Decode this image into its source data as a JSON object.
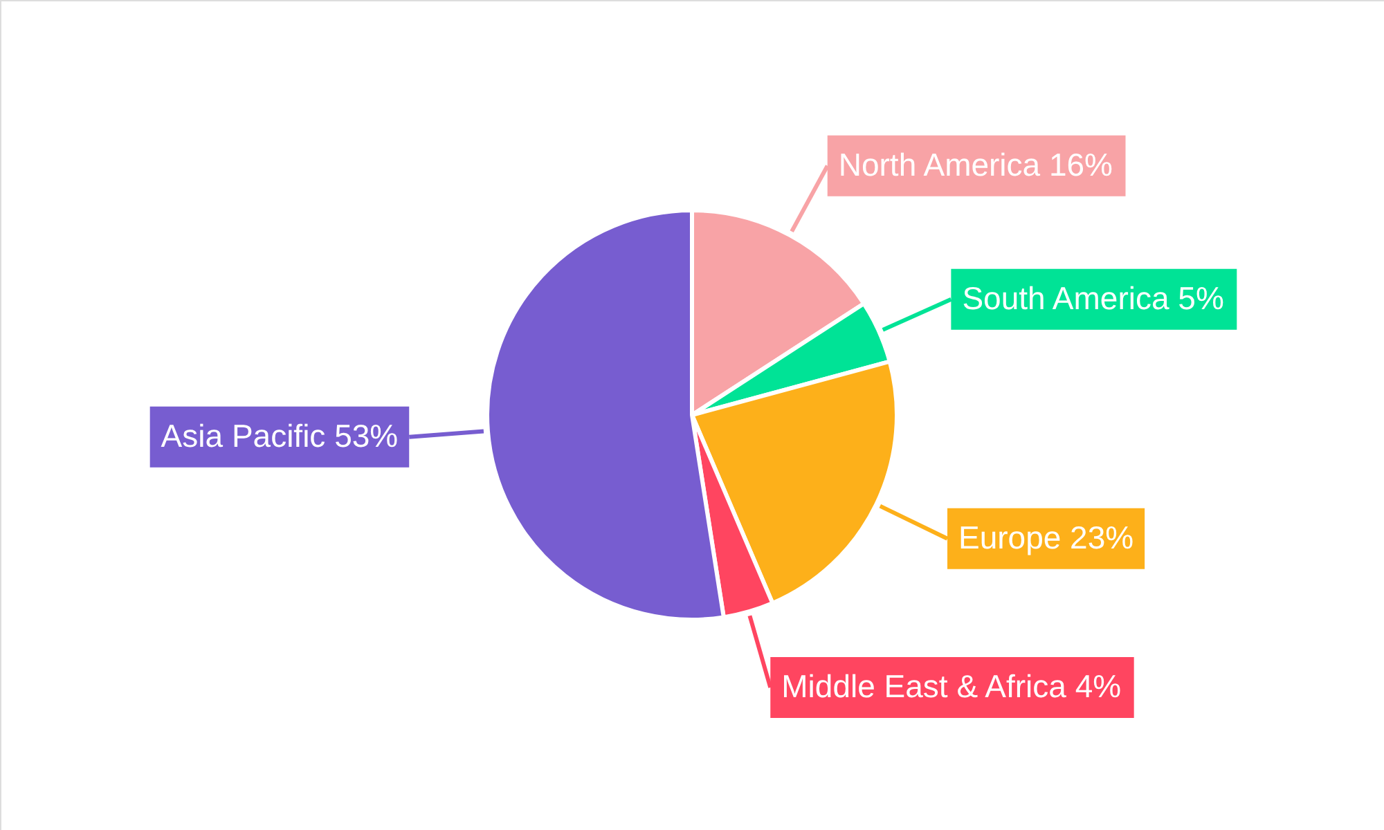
{
  "chart_data": {
    "type": "pie",
    "categories": [
      "North America",
      "South America",
      "Europe",
      "Middle East & Africa",
      "Asia Pacific"
    ],
    "values": [
      16,
      5,
      23,
      4,
      53
    ],
    "value_labels": [
      "16%",
      "5%",
      "23%",
      "4%",
      "53%"
    ],
    "colors": [
      "#f8a3a6",
      "#00e396",
      "#fdb01a",
      "#ff4560",
      "#775dd0"
    ]
  }
}
